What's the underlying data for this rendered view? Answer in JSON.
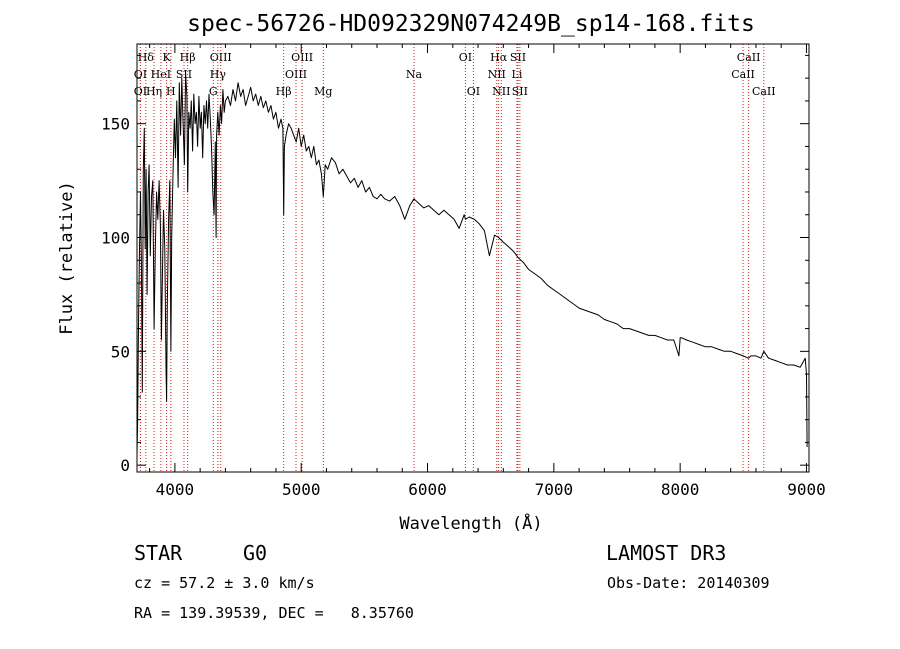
{
  "chart_data": {
    "type": "line",
    "title": "spec-56726-HD092329N074249B_sp14-168.fits",
    "xlabel": "Wavelength (Å)",
    "ylabel": "Flux (relative)",
    "xlim": [
      3700,
      9020
    ],
    "ylim": [
      -3,
      185
    ],
    "x_ticks": [
      4000,
      5000,
      6000,
      7000,
      8000,
      9000
    ],
    "y_ticks": [
      0,
      50,
      100,
      150
    ],
    "series": [
      {
        "name": "spectrum",
        "color": "#000000",
        "x": [
          3700,
          3705,
          3712,
          3720,
          3728,
          3735,
          3742,
          3750,
          3758,
          3765,
          3772,
          3780,
          3788,
          3796,
          3805,
          3815,
          3825,
          3835,
          3845,
          3855,
          3865,
          3875,
          3885,
          3893,
          3900,
          3910,
          3920,
          3930,
          3934,
          3940,
          3950,
          3960,
          3968,
          3975,
          3985,
          3995,
          4005,
          4015,
          4025,
          4035,
          4045,
          4055,
          4065,
          4075,
          4085,
          4095,
          4101,
          4110,
          4120,
          4130,
          4140,
          4150,
          4160,
          4170,
          4180,
          4190,
          4200,
          4210,
          4220,
          4230,
          4240,
          4250,
          4260,
          4270,
          4280,
          4290,
          4300,
          4310,
          4320,
          4326,
          4330,
          4340,
          4350,
          4360,
          4370,
          4380,
          4390,
          4400,
          4420,
          4440,
          4460,
          4480,
          4500,
          4520,
          4540,
          4560,
          4580,
          4600,
          4620,
          4640,
          4660,
          4680,
          4700,
          4720,
          4740,
          4760,
          4780,
          4800,
          4820,
          4840,
          4855,
          4861,
          4867,
          4880,
          4900,
          4920,
          4940,
          4960,
          4980,
          5000,
          5020,
          5040,
          5060,
          5080,
          5100,
          5120,
          5140,
          5160,
          5175,
          5183,
          5190,
          5210,
          5240,
          5270,
          5300,
          5330,
          5360,
          5390,
          5420,
          5450,
          5480,
          5510,
          5540,
          5570,
          5600,
          5630,
          5660,
          5700,
          5740,
          5780,
          5820,
          5860,
          5893,
          5930,
          5970,
          6010,
          6050,
          6090,
          6130,
          6170,
          6210,
          6250,
          6290,
          6300,
          6330,
          6370,
          6410,
          6450,
          6490,
          6530,
          6563,
          6600,
          6640,
          6680,
          6720,
          6760,
          6800,
          6850,
          6900,
          6950,
          7000,
          7050,
          7100,
          7150,
          7200,
          7250,
          7300,
          7350,
          7400,
          7450,
          7500,
          7550,
          7600,
          7650,
          7700,
          7750,
          7800,
          7850,
          7900,
          7950,
          7990,
          8000,
          8010,
          8050,
          8100,
          8150,
          8200,
          8250,
          8300,
          8350,
          8400,
          8450,
          8500,
          8542,
          8560,
          8600,
          8640,
          8662,
          8700,
          8750,
          8800,
          8850,
          8900,
          8950,
          8990,
          9000,
          9005
        ],
        "values": [
          5,
          18,
          62,
          95,
          120,
          88,
          32,
          130,
          148,
          95,
          130,
          75,
          120,
          132,
          92,
          118,
          125,
          60,
          95,
          120,
          108,
          125,
          105,
          55,
          80,
          112,
          95,
          40,
          28,
          70,
          108,
          125,
          50,
          100,
          128,
          152,
          135,
          160,
          122,
          168,
          145,
          170,
          150,
          132,
          172,
          162,
          120,
          155,
          148,
          160,
          138,
          163,
          150,
          155,
          140,
          162,
          148,
          155,
          135,
          158,
          150,
          160,
          148,
          163,
          152,
          140,
          120,
          110,
          142,
          100,
          145,
          155,
          145,
          158,
          150,
          165,
          155,
          160,
          162,
          158,
          165,
          160,
          168,
          162,
          165,
          158,
          162,
          166,
          160,
          163,
          158,
          162,
          157,
          160,
          155,
          158,
          152,
          155,
          148,
          152,
          148,
          110,
          140,
          145,
          150,
          148,
          145,
          142,
          148,
          140,
          145,
          138,
          140,
          135,
          140,
          132,
          134,
          128,
          118,
          125,
          132,
          130,
          135,
          133,
          128,
          130,
          127,
          124,
          126,
          122,
          125,
          120,
          122,
          118,
          117,
          119,
          117,
          116,
          118,
          114,
          108,
          114,
          117,
          115,
          113,
          114,
          112,
          110,
          112,
          110,
          108,
          104,
          110,
          108,
          109,
          108,
          106,
          103,
          92,
          101,
          100,
          98,
          96,
          94,
          91,
          89,
          86,
          84,
          82,
          79,
          77,
          75,
          73,
          71,
          69,
          68,
          67,
          66,
          64,
          63,
          62,
          60,
          60,
          59,
          58,
          57,
          57,
          56,
          55,
          55,
          48,
          56,
          56,
          55,
          54,
          53,
          52,
          52,
          51,
          50,
          50,
          49,
          48,
          47,
          48,
          48,
          47,
          50,
          47,
          46,
          45,
          44,
          44,
          43,
          47,
          40,
          8
        ]
      }
    ],
    "emission_lines": [
      {
        "name": "Hδ",
        "x": 3770,
        "row": 0
      },
      {
        "name": "K",
        "x": 3934,
        "row": 0
      },
      {
        "name": "Hβ",
        "x": 4101,
        "row": 0
      },
      {
        "name": "OIII",
        "x": 4363,
        "row": 0
      },
      {
        "name": "OIII",
        "x": 5007,
        "row": 0
      },
      {
        "name": "OI",
        "x": 6300,
        "row": 0
      },
      {
        "name": "Hα",
        "x": 6563,
        "row": 0
      },
      {
        "name": "SII",
        "x": 6716,
        "row": 0
      },
      {
        "name": "CaII",
        "x": 8542,
        "row": 0
      },
      {
        "name": "OI",
        "x": 3727,
        "row": 1
      },
      {
        "name": "HeI",
        "x": 3889,
        "row": 1
      },
      {
        "name": "SII",
        "x": 4072,
        "row": 1
      },
      {
        "name": "Hγ",
        "x": 4340,
        "row": 1
      },
      {
        "name": "OIII",
        "x": 4959,
        "row": 1
      },
      {
        "name": "Na",
        "x": 5893,
        "row": 1
      },
      {
        "name": "NII",
        "x": 6548,
        "row": 1
      },
      {
        "name": "Li",
        "x": 6708,
        "row": 1
      },
      {
        "name": "CaII",
        "x": 8498,
        "row": 1
      },
      {
        "name": "OI",
        "x": 3727,
        "row": 2
      },
      {
        "name": "Hη",
        "x": 3835,
        "row": 2
      },
      {
        "name": "H",
        "x": 3968,
        "row": 2
      },
      {
        "name": "G",
        "x": 4304,
        "row": 2
      },
      {
        "name": "Hβ",
        "x": 4861,
        "row": 2
      },
      {
        "name": "Mg",
        "x": 5175,
        "row": 2
      },
      {
        "name": "OI",
        "x": 6363,
        "row": 2
      },
      {
        "name": "NII",
        "x": 6584,
        "row": 2
      },
      {
        "name": "SII",
        "x": 6731,
        "row": 2
      },
      {
        "name": "CaII",
        "x": 8662,
        "row": 2
      }
    ]
  },
  "info": {
    "object_class": "STAR",
    "subclass": "G0",
    "survey": "LAMOST DR3",
    "redshift_text": "cz = 57.2 ± 3.0 km/s",
    "obs_date_text": "Obs-Date: 20140309",
    "coords_text": "RA = 139.39539, DEC =   8.35760"
  },
  "colors": {
    "line_marker": "#cc2222",
    "spectrum": "#000000",
    "axis": "#000000"
  }
}
